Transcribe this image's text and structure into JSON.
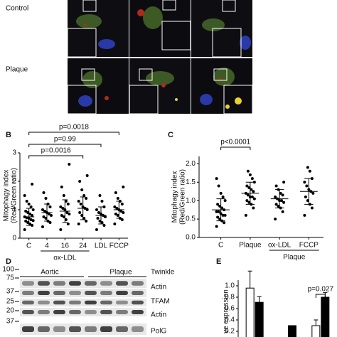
{
  "micrographs": {
    "rows": [
      "Control",
      "Plaque"
    ]
  },
  "chart_data": [
    {
      "type": "strip",
      "panel": "B",
      "ylabel": [
        "Mitophagy index",
        "(Red/Green ratio)"
      ],
      "categories": [
        "C",
        "4",
        "16",
        "24",
        "LDL",
        "FCCP"
      ],
      "group_label": {
        "text": "ox-LDL",
        "span": [
          1,
          3
        ]
      },
      "values": [
        [
          0.3,
          0.45,
          0.5,
          0.55,
          0.6,
          0.62,
          0.65,
          0.7,
          0.72,
          0.75,
          0.8,
          0.85,
          0.9,
          0.95,
          1.0,
          1.1,
          1.2,
          1.3,
          1.5,
          1.9
        ],
        [
          0.4,
          0.55,
          0.6,
          0.7,
          0.75,
          0.8,
          0.85,
          0.9,
          0.95,
          1.0,
          1.1,
          1.2,
          1.4,
          1.6
        ],
        [
          0.3,
          0.5,
          0.65,
          0.75,
          0.8,
          0.85,
          0.9,
          1.0,
          1.05,
          1.1,
          1.2,
          1.3,
          1.5,
          1.8,
          2.6
        ],
        [
          0.5,
          0.6,
          0.7,
          0.8,
          0.9,
          1.0,
          1.05,
          1.1,
          1.2,
          1.3,
          1.4,
          1.5,
          1.7,
          2.0,
          2.2
        ],
        [
          0.3,
          0.45,
          0.55,
          0.6,
          0.7,
          0.75,
          0.8,
          0.85,
          0.9,
          1.0,
          1.1,
          1.3,
          1.5
        ],
        [
          0.5,
          0.65,
          0.7,
          0.8,
          0.85,
          0.9,
          0.95,
          1.0,
          1.05,
          1.1,
          1.2,
          1.3,
          1.4,
          1.6,
          1.8
        ]
      ],
      "mean": [
        0.75,
        0.9,
        0.95,
        1.05,
        0.8,
        1.0
      ],
      "sd": [
        0.3,
        0.3,
        0.4,
        0.4,
        0.3,
        0.3
      ],
      "color": "#000000",
      "brackets": [
        {
          "label": "p=0.0018",
          "from": 0,
          "to": 5
        },
        {
          "label": "p=0.99",
          "from": 0,
          "to": 4
        },
        {
          "label": "p=0.0016",
          "from": 0,
          "to": 3
        }
      ],
      "ylim": [
        0,
        3
      ],
      "yticks": [
        0,
        1,
        2,
        3
      ]
    },
    {
      "type": "strip",
      "panel": "C",
      "ylabel": [
        "Mitophagy index",
        "(Red/Green ratio)"
      ],
      "categories": [
        "C",
        "Plaque",
        "ox-LDL",
        "FCCP"
      ],
      "group_label": {
        "text": "Plaque",
        "span": [
          2,
          3
        ]
      },
      "values": [
        [
          0.3,
          0.4,
          0.45,
          0.5,
          0.55,
          0.6,
          0.6,
          0.65,
          0.7,
          0.7,
          0.75,
          0.8,
          0.85,
          0.9,
          1.0,
          1.1,
          1.2,
          1.4,
          1.6
        ],
        [
          0.6,
          0.8,
          0.9,
          0.95,
          1.0,
          1.05,
          1.1,
          1.1,
          1.15,
          1.2,
          1.25,
          1.3,
          1.35,
          1.4,
          1.5,
          1.6,
          1.7,
          1.8
        ],
        [
          0.5,
          0.7,
          0.8,
          0.85,
          0.9,
          0.95,
          1.0,
          1.0,
          1.05,
          1.1,
          1.15,
          1.2,
          1.3,
          1.4,
          1.5
        ],
        [
          0.6,
          0.8,
          0.9,
          1.0,
          1.1,
          1.2,
          1.25,
          1.3,
          1.4,
          1.5,
          1.6,
          1.8,
          1.9
        ]
      ],
      "mean": [
        0.75,
        1.2,
        1.05,
        1.25
      ],
      "sd": [
        0.3,
        0.3,
        0.25,
        0.35
      ],
      "color": "#000000",
      "brackets": [
        {
          "label": "p<0.0001",
          "from": 0,
          "to": 1
        }
      ],
      "ylim": [
        0,
        2.2
      ],
      "yticks": [
        {
          "value": 0,
          "label": "0.0"
        },
        {
          "value": 0.5,
          "label": "0.5"
        },
        {
          "value": 1,
          "label": "1.0"
        },
        {
          "value": 1.5,
          "label": "1.5"
        },
        {
          "value": 2,
          "label": "2.0"
        }
      ]
    },
    {
      "type": "bar",
      "panel": "E",
      "ylabel": [
        "ve expression"
      ],
      "categories": [
        null,
        null,
        null
      ],
      "series": [
        {
          "color": "#ffffff",
          "values": [
            0.96,
            null,
            0.3
          ],
          "errors": [
            0.3,
            null,
            0.1
          ]
        },
        {
          "color": "#000000",
          "values": [
            0.71,
            0.3,
            0.8
          ],
          "errors": [
            0.1,
            null,
            0.08
          ]
        }
      ],
      "brackets": [
        {
          "label": "p=0.027",
          "from": 2,
          "to": 2
        }
      ],
      "ylim": [
        0,
        1.1
      ],
      "yticks": [
        {
          "value": 0.2,
          "label": "0.2"
        },
        {
          "value": 0.4,
          "label": "0.4"
        },
        {
          "value": 0.6,
          "label": "0.6"
        },
        {
          "value": 0.8,
          "label": "0.8"
        },
        {
          "value": 1,
          "label": "1.0"
        }
      ]
    }
  ],
  "blot": {
    "panel": "D",
    "groups": [
      "Aortic",
      "Plaque"
    ],
    "markers": [
      "100",
      "75",
      "37",
      "25",
      "20",
      "37"
    ],
    "bands": [
      "Twinkle",
      "Actin",
      "TFAM",
      "Actin",
      "PolG"
    ]
  }
}
